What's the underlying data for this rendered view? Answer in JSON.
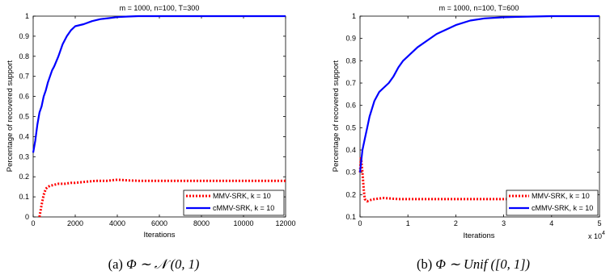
{
  "chart_data": [
    {
      "type": "line",
      "title": "m = 1000, n=100, T=300",
      "xlabel": "Iterations",
      "ylabel": "Percentage of recovered support",
      "xlim": [
        0,
        12000
      ],
      "ylim": [
        0,
        1
      ],
      "xticks": [
        "0",
        "2000",
        "4000",
        "6000",
        "8000",
        "10000",
        "12000"
      ],
      "yticks": [
        "0",
        "0.1",
        "0.2",
        "0.3",
        "0.4",
        "0.5",
        "0.6",
        "0.7",
        "0.8",
        "0.9",
        "1"
      ],
      "legend_position": "bottom-right",
      "series": [
        {
          "name": "MMV-SRK, k = 10",
          "color": "#ff0000",
          "style": "dotted",
          "x": [
            300,
            400,
            500,
            600,
            700,
            800,
            1000,
            1200,
            1500,
            1800,
            2000,
            2500,
            3000,
            3500,
            4000,
            4500,
            5000,
            6000,
            8000,
            10000,
            12000
          ],
          "y": [
            0,
            0.06,
            0.11,
            0.14,
            0.15,
            0.155,
            0.16,
            0.165,
            0.165,
            0.17,
            0.17,
            0.175,
            0.18,
            0.18,
            0.185,
            0.182,
            0.18,
            0.18,
            0.18,
            0.18,
            0.18
          ]
        },
        {
          "name": "cMMV-SRK, k = 10",
          "color": "#0000ff",
          "style": "solid",
          "x": [
            0,
            100,
            200,
            300,
            400,
            500,
            600,
            700,
            800,
            900,
            1000,
            1200,
            1400,
            1600,
            1800,
            2000,
            2400,
            2800,
            3200,
            3600,
            4000,
            4500,
            5000,
            6000,
            8000,
            10000,
            12000
          ],
          "y": [
            0.32,
            0.38,
            0.46,
            0.52,
            0.55,
            0.6,
            0.63,
            0.67,
            0.7,
            0.73,
            0.75,
            0.8,
            0.86,
            0.9,
            0.93,
            0.95,
            0.96,
            0.975,
            0.985,
            0.99,
            0.995,
            0.998,
            1,
            1,
            1,
            1,
            1
          ]
        }
      ]
    },
    {
      "type": "line",
      "title": "m = 1000, n=100, T=600",
      "xlabel": "Iterations",
      "ylabel": "Percentage of recovered support",
      "xlim": [
        0,
        5
      ],
      "ylim": [
        0.1,
        1
      ],
      "x_multiplier": "x 10",
      "x_multiplier_exp": "4",
      "xticks": [
        "0",
        "1",
        "2",
        "3",
        "4",
        "5"
      ],
      "yticks": [
        "0.1",
        "0.2",
        "0.3",
        "0.4",
        "0.5",
        "0.6",
        "0.7",
        "0.8",
        "0.9",
        "1"
      ],
      "legend_position": "bottom-right",
      "series": [
        {
          "name": "MMV-SRK, k = 10",
          "color": "#ff0000",
          "style": "dotted",
          "x": [
            0,
            0.02,
            0.05,
            0.08,
            0.1,
            0.15,
            0.2,
            0.3,
            0.5,
            0.8,
            1,
            2,
            3,
            4,
            5
          ],
          "y": [
            0.3,
            0.37,
            0.3,
            0.22,
            0.18,
            0.17,
            0.175,
            0.18,
            0.185,
            0.18,
            0.18,
            0.18,
            0.18,
            0.18,
            0.18
          ]
        },
        {
          "name": "cMMV-SRK, k = 10",
          "color": "#0000ff",
          "style": "solid",
          "x": [
            0,
            0.05,
            0.1,
            0.15,
            0.2,
            0.3,
            0.4,
            0.5,
            0.6,
            0.7,
            0.8,
            0.9,
            1,
            1.2,
            1.4,
            1.6,
            1.8,
            2,
            2.3,
            2.6,
            3,
            3.5,
            4,
            5
          ],
          "y": [
            0.3,
            0.4,
            0.45,
            0.5,
            0.55,
            0.62,
            0.66,
            0.68,
            0.7,
            0.73,
            0.77,
            0.8,
            0.82,
            0.86,
            0.89,
            0.92,
            0.94,
            0.96,
            0.98,
            0.99,
            0.995,
            0.998,
            1,
            1
          ]
        }
      ]
    }
  ],
  "captions": [
    {
      "label": "(a)",
      "text": "Φ ∼ 𝒩 (0, 1)"
    },
    {
      "label": "(b)",
      "text": "Φ ∼ Unif ([0, 1])"
    }
  ]
}
